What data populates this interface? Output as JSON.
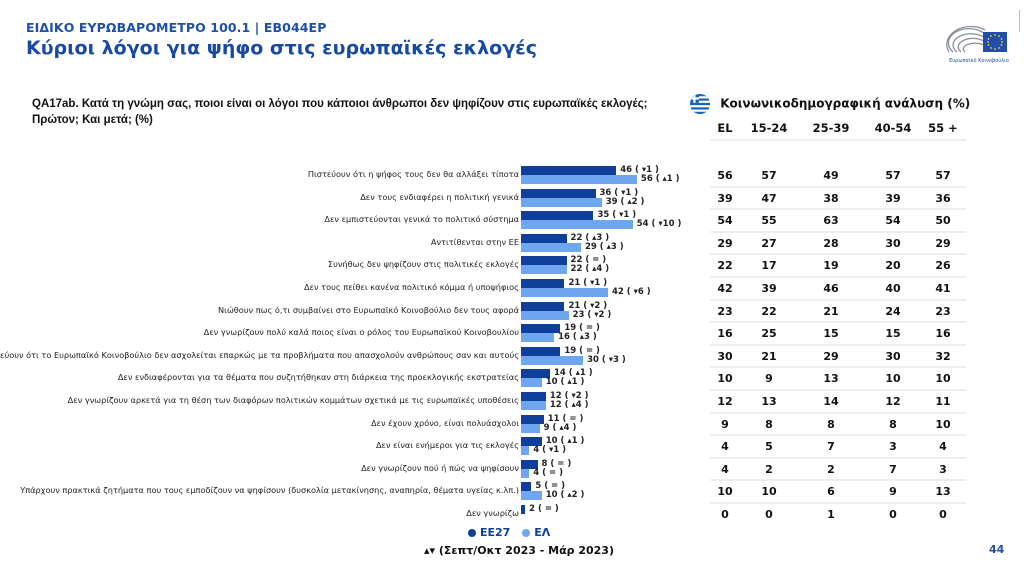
{
  "header": {
    "supertitle": "ΕΙΔΙΚΟ ΕΥΡΩΒΑΡΟΜΕΤΡΟ 100.1 | EB044EP",
    "title": "Κύριοι λόγοι για ψήφο στις ευρωπαϊκές εκλογές",
    "logo_caption": "Ευρωπαϊκό Κοινοβούλιο"
  },
  "question": "QA17ab. Κατά τη γνώμη σας, ποιοι είναι οι λόγοι που κάποιοι άνθρωποι δεν ψηφίζουν στις ευρωπαϊκές εκλογές; Πρώτον; Και μετά; (%)",
  "demographics": {
    "title": "Κοινωνικοδημογραφική ανάλυση (%)",
    "flag_icon": "greece-flag-icon",
    "columns": [
      "EL",
      "15-24",
      "25-39",
      "40-54",
      "55 +"
    ]
  },
  "colors": {
    "eu27": "#0d3f9b",
    "el": "#6fa6f0"
  },
  "chart_data": {
    "type": "bar",
    "orientation": "horizontal",
    "title": "Κύριοι λόγοι για ψήφο στις ευρωπαϊκές εκλογές",
    "xlabel": "",
    "ylabel": "",
    "unit": "%",
    "xlim": [
      0,
      60
    ],
    "grid": false,
    "legend_position": "bottom-center",
    "categories": [
      "Πιστεύουν ότι η ψήφος τους δεν θα αλλάξει τίποτα",
      "Δεν τους ενδιαφέρει η πολιτική γενικά",
      "Δεν εμπιστεύονται γενικά το πολιτικό σύστημα",
      "Αντιτίθενται στην ΕΕ",
      "Συνήθως δεν ψηφίζουν στις πολιτικές εκλογές",
      "Δεν τους πείθει κανένα πολιτικό κόμμα ή υποψήφιος",
      "Νιώθουν πως ό,τι συμβαίνει στο Ευρωπαϊκό Κοινοβούλιο δεν τους αφορά",
      "Δεν γνωρίζουν πολύ καλά ποιος είναι ο ρόλος του Ευρωπαϊκού Κοινοβουλίου",
      "Πιστεύουν ότι το Ευρωπαϊκό Κοινοβούλιο δεν ασχολείται επαρκώς με τα προβλήματα που απασχολούν ανθρώπους σαν και αυτούς",
      "Δεν ενδιαφέρονται για τα θέματα που συζητήθηκαν στη διάρκεια της προεκλογικής εκστρατείας",
      "Δεν γνωρίζουν αρκετά για τη θέση των διαφόρων πολιτικών κομμάτων σχετικά με τις ευρωπαϊκές υποθέσεις",
      "Δεν έχουν χρόνο, είναι πολυάσχολοι",
      "Δεν είναι ενήμεροι για τις εκλογές",
      "Δεν γνωρίζουν πού ή πώς να ψηφίσουν",
      "Υπάρχουν πρακτικά ζητήματα που τους εμποδίζουν να ψηφίσουν (δυσκολία μετακίνησης, αναπηρία, θέματα υγείας κ.λπ.)",
      "Δεν γνωρίζω"
    ],
    "series": [
      {
        "name": "ΕΕ27",
        "values": [
          46,
          36,
          35,
          22,
          22,
          21,
          21,
          19,
          19,
          14,
          12,
          11,
          10,
          8,
          5,
          2
        ],
        "changes": [
          "▾1",
          "▾1",
          "▾1",
          "▴3",
          "=",
          "▾1",
          "▾2",
          "=",
          "=",
          "▴1",
          "▾2",
          "=",
          "▴1",
          "=",
          "=",
          "="
        ]
      },
      {
        "name": "ΕΛ",
        "values": [
          56,
          39,
          54,
          29,
          22,
          42,
          23,
          16,
          30,
          10,
          12,
          9,
          4,
          4,
          10,
          null
        ],
        "changes": [
          "▴1",
          "▴2",
          "▾10",
          "▴3",
          "▴4",
          "▾6",
          "▾2",
          "▴3",
          "▾3",
          "▴1",
          "▴4",
          "▴4",
          "▾1",
          "=",
          "▴2",
          null
        ]
      }
    ],
    "table": {
      "columns": [
        "EL",
        "15-24",
        "25-39",
        "40-54",
        "55 +"
      ],
      "rows": [
        [
          56,
          57,
          49,
          57,
          57
        ],
        [
          39,
          47,
          38,
          39,
          36
        ],
        [
          54,
          55,
          63,
          54,
          50
        ],
        [
          29,
          27,
          28,
          30,
          29
        ],
        [
          22,
          17,
          19,
          20,
          26
        ],
        [
          42,
          39,
          46,
          40,
          41
        ],
        [
          23,
          22,
          21,
          24,
          23
        ],
        [
          16,
          25,
          15,
          15,
          16
        ],
        [
          30,
          21,
          29,
          30,
          32
        ],
        [
          10,
          9,
          13,
          10,
          10
        ],
        [
          12,
          13,
          14,
          12,
          11
        ],
        [
          9,
          8,
          8,
          8,
          10
        ],
        [
          4,
          5,
          7,
          3,
          4
        ],
        [
          4,
          2,
          2,
          7,
          3
        ],
        [
          10,
          10,
          6,
          9,
          13
        ],
        [
          0,
          0,
          1,
          0,
          0
        ]
      ]
    }
  },
  "legend": {
    "items": [
      {
        "label": "ΕΕ27"
      },
      {
        "label": "ΕΛ"
      }
    ],
    "period": "▴▾ (Σεπτ/Οκτ 2023 - Μάρ 2023)"
  },
  "page_number": "44"
}
